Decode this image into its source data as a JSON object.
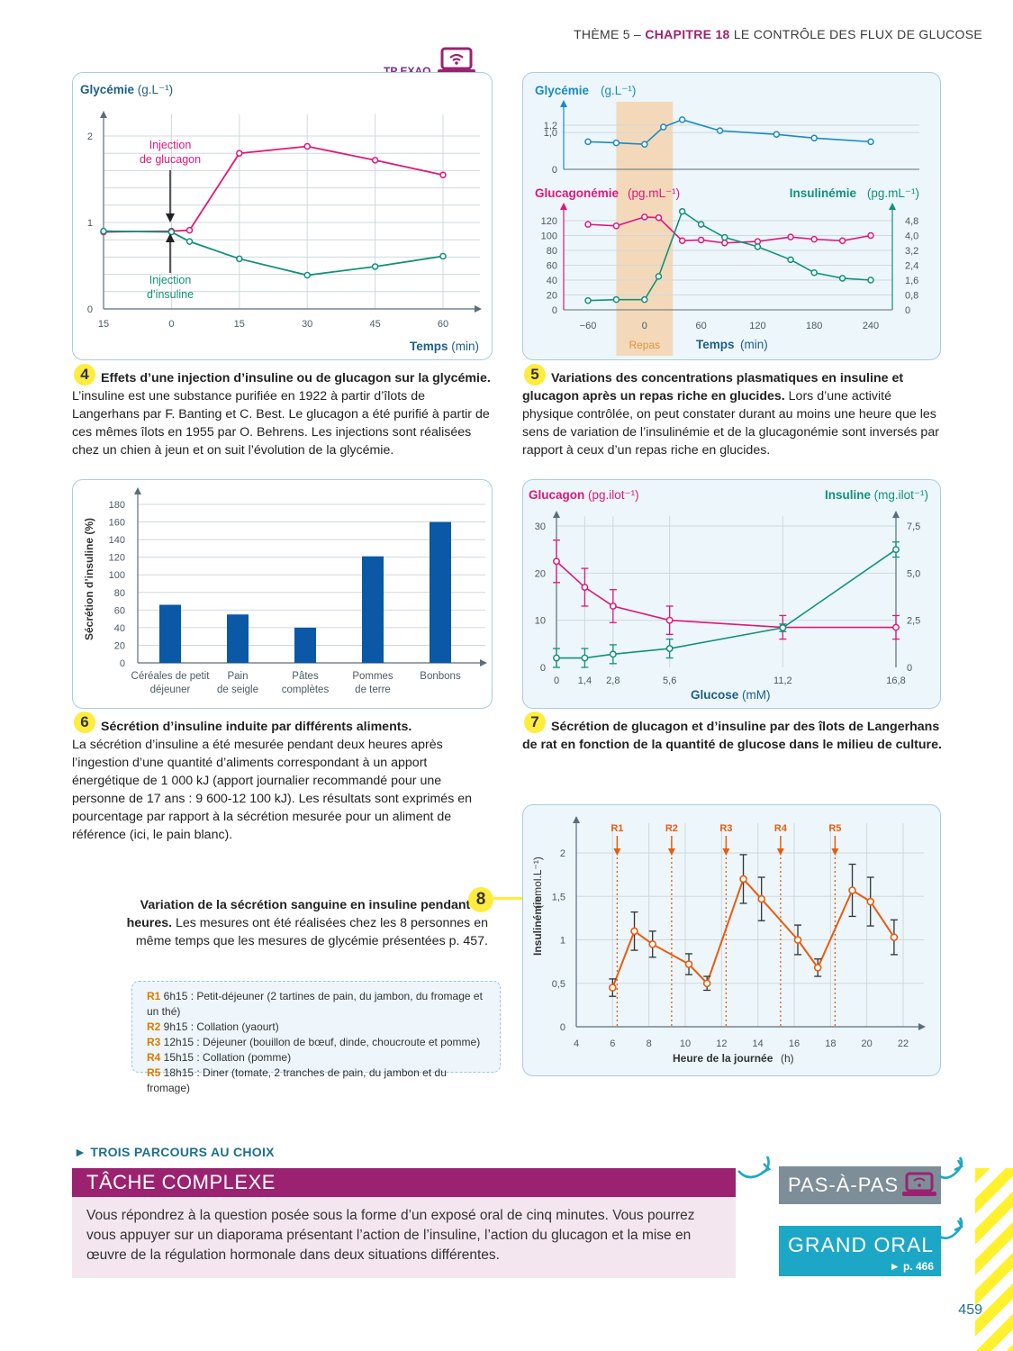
{
  "header": {
    "prefix": "THÈME 5 – ",
    "chapter": "CHAPITRE 18",
    "title": " LE CONTRÔLE DES FLUX DE GLUCOSE"
  },
  "tp_exao": "TP EXAO",
  "fig4": {
    "number": "4",
    "caption_bold": "Effets d’une injection d’insuline ou de glucagon sur la glycémie.",
    "caption": " L’insuline est une substance purifiée en 1922 à partir d’îlots de Langerhans par F. Banting et C. Best. Le glucagon a été purifié à partir de ces mêmes îlots en 1955 par O. Behrens. Les injections sont réalisées chez un chien à jeun et on suit l’évolution de la glycémie."
  },
  "fig5": {
    "number": "5",
    "caption_bold": "Variations des concentrations plasmatiques en insuline et glucagon après un repas riche en glucides.",
    "caption": " Lors d’une activité physique contrôlée, on peut constater durant au moins une heure que les sens de variation de l’insulinémie et de la glucagonémie sont inversés par rapport à ceux d’un repas riche en glucides."
  },
  "fig6": {
    "number": "6",
    "caption_bold": "Sécrétion d’insuline induite par différents aliments.",
    "caption": "La sécrétion d’insuline a été mesurée pendant deux heures après l’ingestion d’une quantité d’aliments correspondant à un apport énergétique de 1 000 kJ (apport journalier recommandé pour une personne de 17 ans : 9 600-12 100 kJ). Les résultats sont exprimés en pourcentage par rapport à la sécrétion mesurée pour un aliment de référence (ici, le pain blanc)."
  },
  "fig7": {
    "number": "7",
    "caption_bold": "Sécrétion de glucagon et d’insuline par des îlots de Langerhans de rat en fonction de la quantité de glucose dans le milieu de culture."
  },
  "fig8": {
    "number": "8",
    "caption_bold": "Variation de la sécrétion sanguine en insuline pendant 24 heures.",
    "caption": " Les mesures ont été réalisées chez les 8 personnes en même temps que les mesures de glycémie présentées p. 457.",
    "legend": [
      {
        "id": "R1",
        "text": " 6h15 : Petit-déjeuner (2 tartines de pain, du jambon, du fromage et un thé)"
      },
      {
        "id": "R2",
        "text": " 9h15 : Collation (yaourt)"
      },
      {
        "id": "R3",
        "text": " 12h15 : Déjeuner (bouillon de bœuf, dinde, choucroute et pomme)"
      },
      {
        "id": "R4",
        "text": " 15h15 : Collation (pomme)"
      },
      {
        "id": "R5",
        "text": " 18h15 : Diner (tomate, 2 tranches de pain, du jambon et du fromage)"
      }
    ]
  },
  "parcours": "► TROIS PARCOURS AU CHOIX",
  "tache": {
    "title": "TÂCHE COMPLEXE",
    "text": "Vous répondrez à la question posée sous la forme d’un exposé oral de cinq minutes. Vous pourrez vous appuyer sur un diaporama présentant l’action de l’insuline, l’action du glucagon et la mise en œuvre de la régulation hormonale dans deux situations différentes."
  },
  "pas_a_pas": "PAS-À-PAS",
  "grand_oral": "GRAND ORAL",
  "grand_oral_ref": "► p. 466",
  "page_number": "459",
  "colors": {
    "pink": "#e0177a",
    "green": "#13917a",
    "blue": "#1a8ac4",
    "orange": "#e85c0d",
    "bar": "#0a58a6",
    "magenta": "#9b2270"
  },
  "chart_data": [
    {
      "id": "fig4",
      "type": "line",
      "ylabel": "Glycémie (g.L⁻¹)",
      "xlabel": "Temps (min)",
      "x_ticks": [
        "15",
        "0",
        "15",
        "30",
        "45",
        "60"
      ],
      "y_ticks": [
        "0",
        "1",
        "2"
      ],
      "x": [
        -15,
        0,
        15,
        30,
        45,
        60
      ],
      "ylim": [
        0,
        2.1
      ],
      "xlim": [
        -15,
        66
      ],
      "series": [
        {
          "name": "Injection de glucagon",
          "x": [
            -15,
            0,
            4,
            15,
            30,
            45,
            60
          ],
          "values": [
            0.89,
            0.9,
            0.91,
            1.8,
            1.88,
            1.72,
            1.55
          ]
        },
        {
          "name": "Injection d’insuline",
          "x": [
            -15,
            0,
            4,
            15,
            30,
            45,
            60
          ],
          "values": [
            0.9,
            0.89,
            0.78,
            0.58,
            0.39,
            0.49,
            0.61
          ]
        }
      ],
      "annotations": [
        "Injection de glucagon",
        "Injection d’insuline"
      ]
    },
    {
      "id": "fig5_top",
      "type": "line",
      "ylabel": "Glycémie (g.L⁻¹)",
      "y_ticks": [
        "0",
        "1,0",
        "1,2"
      ],
      "x": [
        -60,
        -30,
        0,
        20,
        40,
        80,
        140,
        180,
        240
      ],
      "series": [
        {
          "name": "Glycémie",
          "values": [
            0.75,
            0.72,
            0.68,
            1.15,
            1.35,
            1.05,
            0.95,
            0.85,
            0.75
          ]
        }
      ]
    },
    {
      "id": "fig5_bottom",
      "type": "line",
      "xlabel": "Temps (min)",
      "x_ticks": [
        "−60",
        "0",
        "60",
        "120",
        "180",
        "240"
      ],
      "y_left_label": "Glucagonémie (pg.mL⁻¹)",
      "y_left_ticks": [
        "0",
        "20",
        "40",
        "60",
        "80",
        "100",
        "120"
      ],
      "y_right_label": "Insulinémie (pg.mL⁻¹)",
      "y_right_ticks": [
        "0",
        "0,8",
        "1,6",
        "2,4",
        "3,2",
        "4,0",
        "4,8"
      ],
      "band_label": "Repas",
      "band": [
        -30,
        30
      ],
      "series": [
        {
          "name": "Glucagonémie",
          "axis": "left",
          "x": [
            -60,
            -30,
            0,
            15,
            40,
            60,
            85,
            120,
            155,
            180,
            210,
            240
          ],
          "values": [
            115,
            113,
            125,
            124,
            93,
            94,
            90,
            92,
            98,
            95,
            93,
            100
          ]
        },
        {
          "name": "Insulinémie",
          "axis": "right",
          "x": [
            -60,
            -30,
            0,
            15,
            40,
            60,
            85,
            120,
            155,
            180,
            210,
            240
          ],
          "values": [
            0.5,
            0.55,
            0.55,
            1.8,
            5.3,
            4.6,
            3.9,
            3.4,
            2.7,
            2.0,
            1.7,
            1.6
          ]
        }
      ]
    },
    {
      "id": "fig6",
      "type": "bar",
      "ylabel": "Sécrétion d’insuline (%)",
      "ylim": [
        0,
        180
      ],
      "y_ticks": [
        "0",
        "20",
        "40",
        "60",
        "80",
        "100",
        "120",
        "140",
        "160",
        "180"
      ],
      "categories": [
        "Céréales de petit déjeuner",
        "Pain de seigle",
        "Pâtes complètes",
        "Pommes de terre",
        "Bonbons"
      ],
      "values": [
        66,
        55,
        40,
        121,
        160
      ]
    },
    {
      "id": "fig7",
      "type": "line",
      "xlabel": "Glucose (mM)",
      "x_ticks": [
        "0",
        "1,4",
        "2,8",
        "5,6",
        "11,2",
        "16,8"
      ],
      "y_left_label": "Glucagon (pg.ilot⁻¹)",
      "y_left_ticks": [
        "0",
        "10",
        "20",
        "30"
      ],
      "y_right_label": "Insuline (mg.ilot⁻¹)",
      "y_right_ticks": [
        "0",
        "2,5",
        "5,0",
        "7,5"
      ],
      "series": [
        {
          "name": "Glucagon",
          "axis": "left",
          "x": [
            0,
            1.4,
            2.8,
            5.6,
            11.2,
            16.8
          ],
          "values": [
            22.5,
            17,
            13,
            10,
            8.5,
            8.5
          ],
          "err": [
            4.5,
            4,
            3.5,
            3,
            2.5,
            2.5
          ]
        },
        {
          "name": "Insuline",
          "axis": "right",
          "x": [
            0,
            1.4,
            2.8,
            5.6,
            11.2,
            16.8
          ],
          "values": [
            0.5,
            0.5,
            0.7,
            1,
            2.1,
            6.25
          ],
          "err": [
            0.5,
            0.5,
            0.5,
            0.5,
            0.2,
            0.4
          ]
        }
      ]
    },
    {
      "id": "fig8",
      "type": "line",
      "ylabel": "Insulinémie (mmol.L⁻¹)",
      "xlabel": "Heure de la journée (h)",
      "x_ticks": [
        "4",
        "6",
        "8",
        "10",
        "12",
        "14",
        "16",
        "18",
        "20",
        "22"
      ],
      "y_ticks": [
        "0",
        "0,5",
        "1",
        "1,5",
        "2"
      ],
      "xlim": [
        4,
        23
      ],
      "ylim": [
        0,
        2.05
      ],
      "series": [
        {
          "name": "Insulinémie",
          "x": [
            6,
            7.2,
            8.2,
            10.2,
            11.2,
            13.2,
            14.2,
            16.2,
            17.3,
            19.2,
            20.2,
            21.5
          ],
          "values": [
            0.45,
            1.1,
            0.95,
            0.72,
            0.5,
            1.7,
            1.47,
            1.0,
            0.68,
            1.57,
            1.44,
            1.03
          ],
          "err": [
            0.1,
            0.22,
            0.15,
            0.12,
            0.08,
            0.28,
            0.25,
            0.17,
            0.1,
            0.3,
            0.28,
            0.2
          ]
        }
      ],
      "markers": [
        {
          "label": "R1",
          "x": 6.25
        },
        {
          "label": "R2",
          "x": 9.25
        },
        {
          "label": "R3",
          "x": 12.25
        },
        {
          "label": "R4",
          "x": 15.25
        },
        {
          "label": "R5",
          "x": 18.25
        }
      ]
    }
  ]
}
